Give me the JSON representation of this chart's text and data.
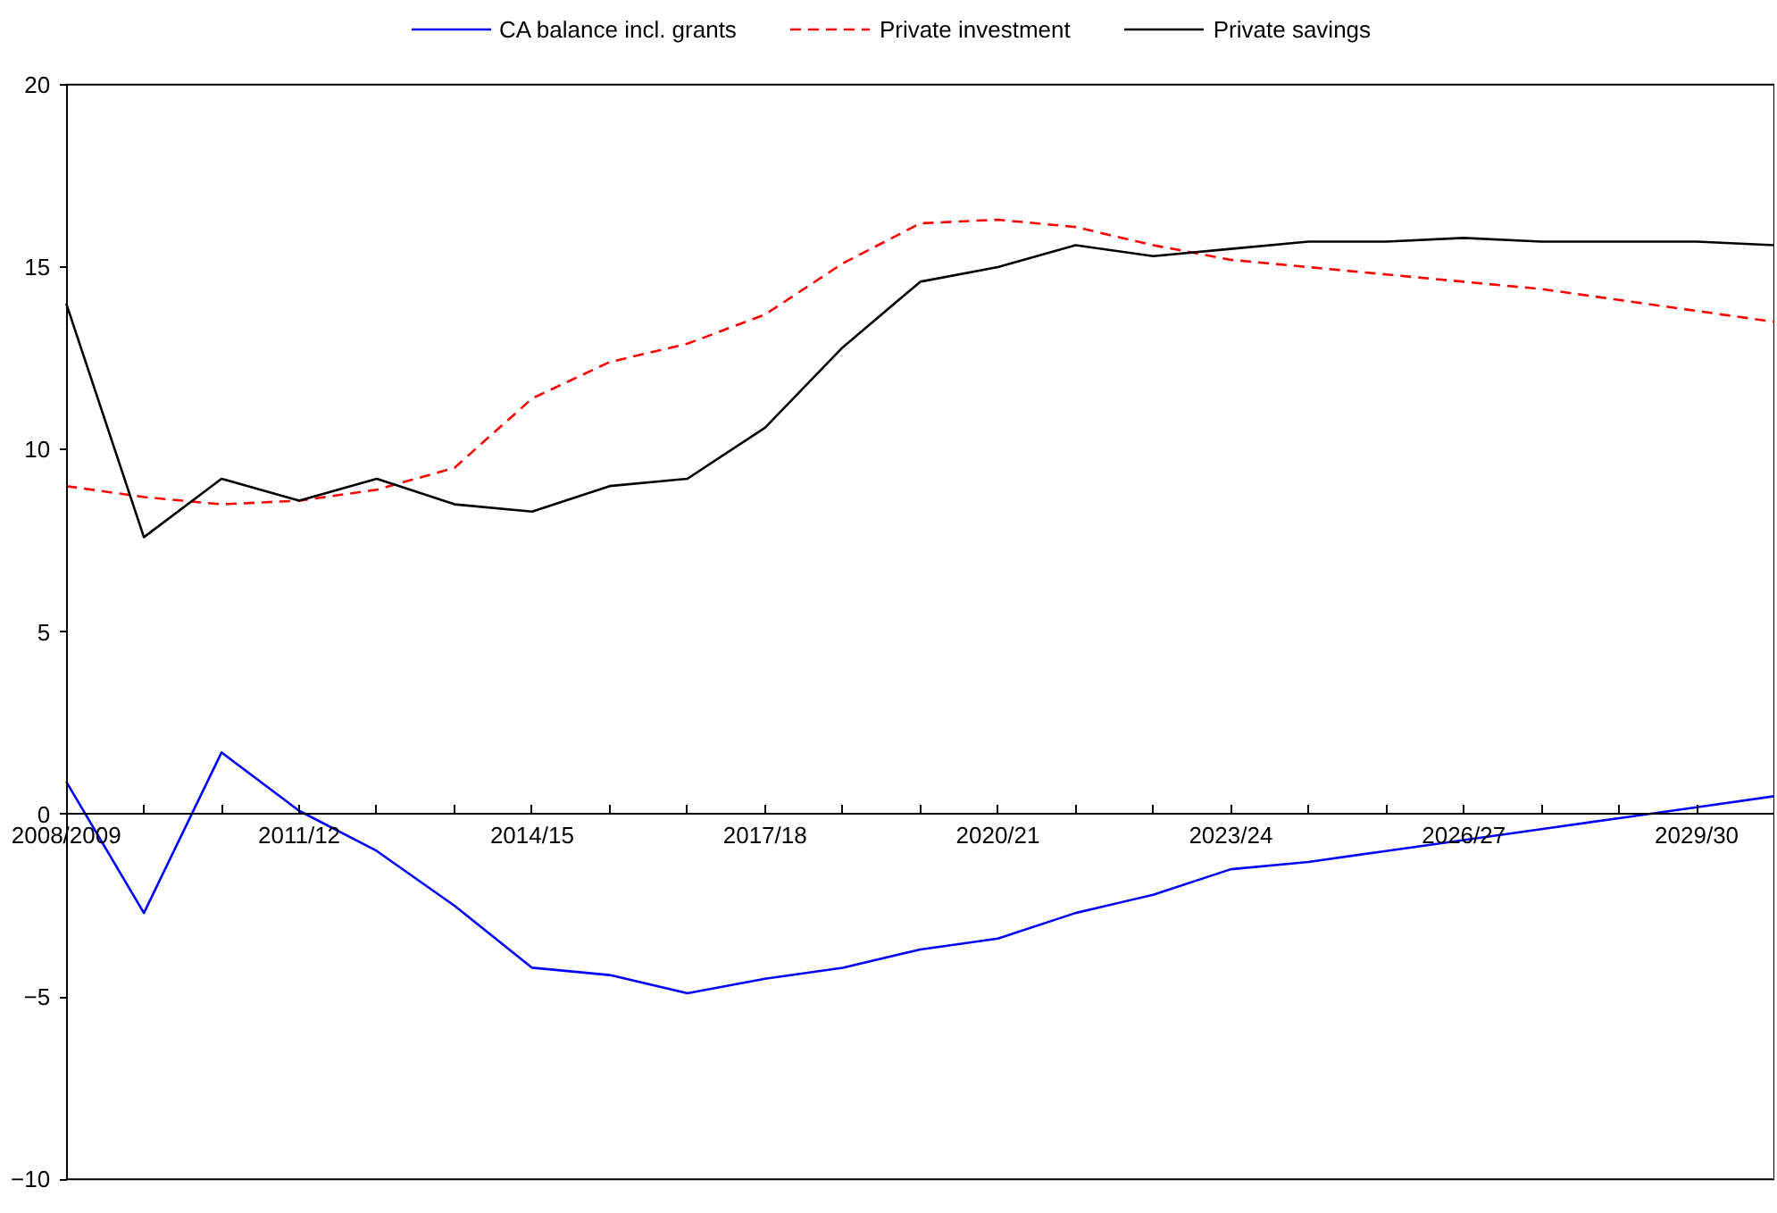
{
  "chart_data": {
    "type": "line",
    "categories": [
      "2008/2009",
      null,
      null,
      "2011/12",
      null,
      null,
      "2014/15",
      null,
      null,
      "2017/18",
      null,
      null,
      "2020/21",
      null,
      null,
      "2023/24",
      null,
      null,
      "2026/27",
      null,
      null,
      "2029/30",
      null
    ],
    "series": [
      {
        "name": "CA balance incl. grants",
        "color": "#0000ff",
        "line_style": "solid",
        "values": [
          0.9,
          -2.7,
          1.7,
          0.1,
          -1.0,
          -2.5,
          -4.2,
          -4.4,
          -4.9,
          -4.5,
          -4.2,
          -3.7,
          -3.4,
          -2.7,
          -2.2,
          -1.5,
          -1.3,
          -1.0,
          -0.7,
          -0.4,
          -0.1,
          0.2,
          0.5
        ]
      },
      {
        "name": "Private investment",
        "color": "#ff0000",
        "line_style": "dashed",
        "values": [
          9.0,
          8.7,
          8.5,
          8.6,
          8.9,
          9.5,
          11.4,
          12.4,
          12.9,
          13.7,
          15.1,
          16.2,
          16.3,
          16.1,
          15.6,
          15.2,
          15.0,
          14.8,
          14.6,
          14.4,
          14.1,
          13.8,
          13.5
        ]
      },
      {
        "name": "Private savings",
        "color": "#000000",
        "line_style": "solid",
        "values": [
          14.0,
          7.6,
          9.2,
          8.6,
          9.2,
          8.5,
          8.3,
          9.0,
          9.2,
          10.6,
          12.8,
          14.6,
          15.0,
          15.6,
          15.3,
          15.5,
          15.7,
          15.7,
          15.8,
          15.7,
          15.7,
          15.7,
          15.6
        ]
      }
    ],
    "ylim": [
      -10,
      20
    ],
    "yticks": [
      -10,
      -5,
      0,
      5,
      10,
      15,
      20
    ],
    "grid": false,
    "legend": "top",
    "marker": "none"
  }
}
